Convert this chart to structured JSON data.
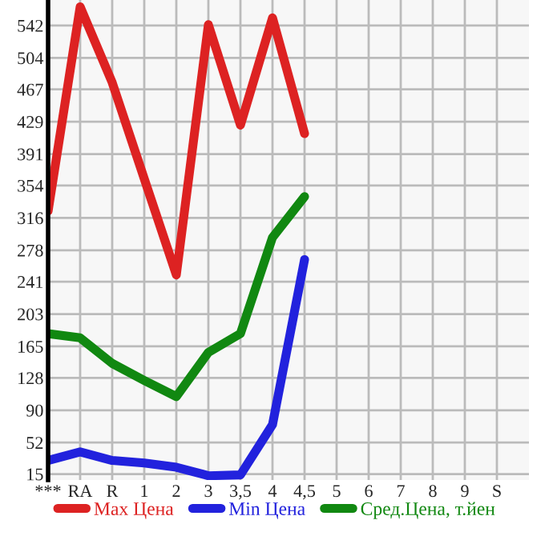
{
  "chart_data": {
    "type": "line",
    "categories": [
      "***",
      "RA",
      "R",
      "1",
      "2",
      "3",
      "3,5",
      "4",
      "4,5",
      "5",
      "6",
      "7",
      "8",
      "9",
      "S"
    ],
    "series": [
      {
        "name": "Max Цена",
        "color": "#dd2222",
        "values": [
          324,
          564,
          475,
          362,
          249,
          543,
          425,
          551,
          415,
          null,
          null,
          null,
          null,
          null,
          null
        ]
      },
      {
        "name": "Min Цена",
        "color": "#2222dd",
        "values": [
          31,
          41,
          31,
          28,
          23,
          13,
          14,
          73,
          267,
          null,
          null,
          null,
          null,
          null,
          null
        ]
      },
      {
        "name": "Сред.Цена, т.йен",
        "color": "#118811",
        "values": [
          180,
          175,
          145,
          125,
          106,
          158,
          180,
          293,
          341,
          null,
          null,
          null,
          null,
          null,
          null
        ]
      }
    ],
    "ylim": [
      8,
      572
    ],
    "yticks": [
      15,
      52,
      90,
      128,
      165,
      203,
      241,
      278,
      316,
      354,
      391,
      429,
      467,
      504,
      542
    ],
    "grid": true,
    "legend": "bottom",
    "marker": "none",
    "line_style": "solid"
  }
}
